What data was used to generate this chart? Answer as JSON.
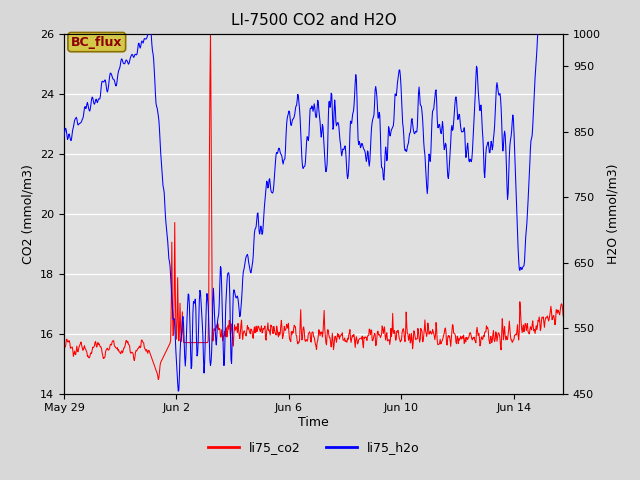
{
  "title": "LI-7500 CO2 and H2O",
  "xlabel": "Time",
  "ylabel_left": "CO2 (mmol/m3)",
  "ylabel_right": "H2O (mmol/m3)",
  "ylim_left": [
    14,
    26
  ],
  "ylim_right": [
    450,
    1000
  ],
  "yticks_left": [
    14,
    16,
    18,
    20,
    22,
    24,
    26
  ],
  "yticks_right": [
    450,
    550,
    650,
    750,
    850,
    950,
    1000
  ],
  "legend_labels": [
    "li75_co2",
    "li75_h2o"
  ],
  "fig_bg_color": "#d8d8d8",
  "plot_bg_color": "#e0e0e0",
  "annotation_text": "BC_flux",
  "annotation_bg": "#d4c84a",
  "annotation_fg": "#8b0000",
  "annotation_border": "#8b7000"
}
